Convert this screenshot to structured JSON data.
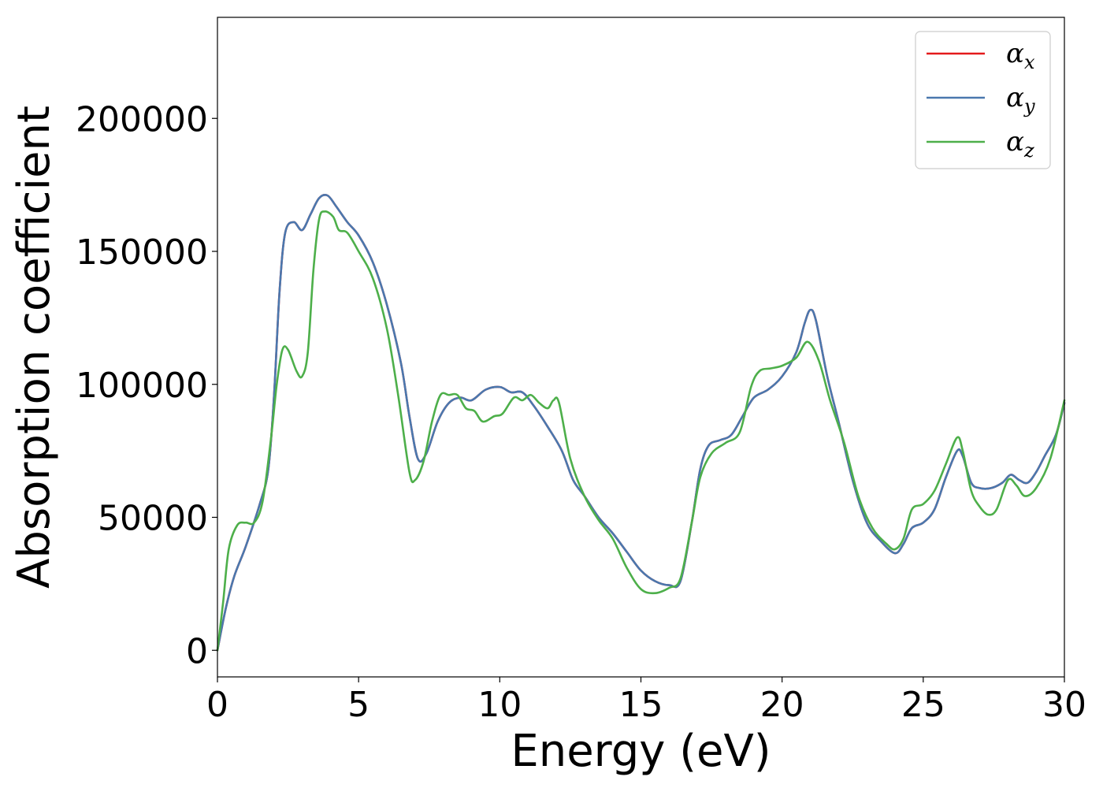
{
  "chart_data": {
    "type": "line",
    "title": "",
    "xlabel": "Energy (eV)",
    "ylabel": "Absorption coefficient",
    "xlim": [
      0,
      30
    ],
    "ylim": [
      -10000,
      238000
    ],
    "xticks": [
      0,
      5,
      10,
      15,
      20,
      25,
      30
    ],
    "yticks": [
      0,
      50000,
      100000,
      150000,
      200000
    ],
    "grid": false,
    "legend_position": "top-right",
    "series": [
      {
        "name": "αx",
        "symbol": "α",
        "subscript": "x",
        "color": "#e41a1c",
        "points": [
          [
            0,
            0
          ],
          [
            0.3,
            16000
          ],
          [
            0.6,
            28000
          ],
          [
            1.0,
            39000
          ],
          [
            1.5,
            55000
          ],
          [
            1.8,
            68000
          ],
          [
            2.0,
            95000
          ],
          [
            2.2,
            135000
          ],
          [
            2.4,
            157000
          ],
          [
            2.7,
            161000
          ],
          [
            3.0,
            158000
          ],
          [
            3.3,
            164000
          ],
          [
            3.6,
            170000
          ],
          [
            3.9,
            171000
          ],
          [
            4.2,
            167000
          ],
          [
            4.6,
            161000
          ],
          [
            5.0,
            156000
          ],
          [
            5.5,
            146000
          ],
          [
            6.0,
            130000
          ],
          [
            6.5,
            108000
          ],
          [
            6.8,
            88000
          ],
          [
            7.1,
            72000
          ],
          [
            7.4,
            74000
          ],
          [
            7.8,
            86000
          ],
          [
            8.2,
            93000
          ],
          [
            8.6,
            95000
          ],
          [
            9.0,
            94000
          ],
          [
            9.5,
            98000
          ],
          [
            10.0,
            99000
          ],
          [
            10.4,
            97000
          ],
          [
            10.8,
            97000
          ],
          [
            11.2,
            92000
          ],
          [
            11.7,
            84000
          ],
          [
            12.2,
            75000
          ],
          [
            12.6,
            64000
          ],
          [
            13.0,
            58000
          ],
          [
            13.5,
            50000
          ],
          [
            14.0,
            44000
          ],
          [
            14.5,
            37000
          ],
          [
            15.0,
            30000
          ],
          [
            15.5,
            26000
          ],
          [
            16.0,
            24500
          ],
          [
            16.4,
            26000
          ],
          [
            16.8,
            48000
          ],
          [
            17.1,
            68000
          ],
          [
            17.4,
            77000
          ],
          [
            17.8,
            79000
          ],
          [
            18.2,
            81000
          ],
          [
            18.6,
            88000
          ],
          [
            19.0,
            95000
          ],
          [
            19.5,
            98000
          ],
          [
            20.0,
            103000
          ],
          [
            20.5,
            112000
          ],
          [
            20.8,
            123000
          ],
          [
            21.0,
            128000
          ],
          [
            21.2,
            124000
          ],
          [
            21.6,
            103000
          ],
          [
            22.0,
            86000
          ],
          [
            22.5,
            64000
          ],
          [
            23.0,
            48000
          ],
          [
            23.5,
            41000
          ],
          [
            24.0,
            36500
          ],
          [
            24.3,
            40000
          ],
          [
            24.6,
            46000
          ],
          [
            25.0,
            48000
          ],
          [
            25.4,
            53000
          ],
          [
            25.8,
            65000
          ],
          [
            26.2,
            75000
          ],
          [
            26.4,
            73000
          ],
          [
            26.7,
            63000
          ],
          [
            27.0,
            61000
          ],
          [
            27.4,
            61000
          ],
          [
            27.8,
            63000
          ],
          [
            28.1,
            66000
          ],
          [
            28.4,
            64000
          ],
          [
            28.7,
            63000
          ],
          [
            29.0,
            67000
          ],
          [
            29.3,
            73000
          ],
          [
            29.7,
            81000
          ],
          [
            30.0,
            93000
          ]
        ]
      },
      {
        "name": "αy",
        "symbol": "α",
        "subscript": "y",
        "color": "#4a78ae",
        "points": [
          [
            0,
            0
          ],
          [
            0.3,
            16000
          ],
          [
            0.6,
            28000
          ],
          [
            1.0,
            39000
          ],
          [
            1.5,
            55000
          ],
          [
            1.8,
            68000
          ],
          [
            2.0,
            95000
          ],
          [
            2.2,
            135000
          ],
          [
            2.4,
            157000
          ],
          [
            2.7,
            161000
          ],
          [
            3.0,
            158000
          ],
          [
            3.3,
            164000
          ],
          [
            3.6,
            170000
          ],
          [
            3.9,
            171000
          ],
          [
            4.2,
            167000
          ],
          [
            4.6,
            161000
          ],
          [
            5.0,
            156000
          ],
          [
            5.5,
            146000
          ],
          [
            6.0,
            130000
          ],
          [
            6.5,
            108000
          ],
          [
            6.8,
            88000
          ],
          [
            7.1,
            72000
          ],
          [
            7.4,
            74000
          ],
          [
            7.8,
            86000
          ],
          [
            8.2,
            93000
          ],
          [
            8.6,
            95000
          ],
          [
            9.0,
            94000
          ],
          [
            9.5,
            98000
          ],
          [
            10.0,
            99000
          ],
          [
            10.4,
            97000
          ],
          [
            10.8,
            97000
          ],
          [
            11.2,
            92000
          ],
          [
            11.7,
            84000
          ],
          [
            12.2,
            75000
          ],
          [
            12.6,
            64000
          ],
          [
            13.0,
            58000
          ],
          [
            13.5,
            50000
          ],
          [
            14.0,
            44000
          ],
          [
            14.5,
            37000
          ],
          [
            15.0,
            30000
          ],
          [
            15.5,
            26000
          ],
          [
            16.0,
            24500
          ],
          [
            16.4,
            26000
          ],
          [
            16.8,
            48000
          ],
          [
            17.1,
            68000
          ],
          [
            17.4,
            77000
          ],
          [
            17.8,
            79000
          ],
          [
            18.2,
            81000
          ],
          [
            18.6,
            88000
          ],
          [
            19.0,
            95000
          ],
          [
            19.5,
            98000
          ],
          [
            20.0,
            103000
          ],
          [
            20.5,
            112000
          ],
          [
            20.8,
            123000
          ],
          [
            21.0,
            128000
          ],
          [
            21.2,
            124000
          ],
          [
            21.6,
            103000
          ],
          [
            22.0,
            86000
          ],
          [
            22.5,
            64000
          ],
          [
            23.0,
            48000
          ],
          [
            23.5,
            41000
          ],
          [
            24.0,
            36500
          ],
          [
            24.3,
            40000
          ],
          [
            24.6,
            46000
          ],
          [
            25.0,
            48000
          ],
          [
            25.4,
            53000
          ],
          [
            25.8,
            65000
          ],
          [
            26.2,
            75000
          ],
          [
            26.4,
            73000
          ],
          [
            26.7,
            63000
          ],
          [
            27.0,
            61000
          ],
          [
            27.4,
            61000
          ],
          [
            27.8,
            63000
          ],
          [
            28.1,
            66000
          ],
          [
            28.4,
            64000
          ],
          [
            28.7,
            63000
          ],
          [
            29.0,
            67000
          ],
          [
            29.3,
            73000
          ],
          [
            29.7,
            81000
          ],
          [
            30.0,
            93000
          ]
        ]
      },
      {
        "name": "αz",
        "symbol": "α",
        "subscript": "z",
        "color": "#4daf4a",
        "points": [
          [
            0,
            0
          ],
          [
            0.2,
            18000
          ],
          [
            0.4,
            38000
          ],
          [
            0.7,
            47000
          ],
          [
            1.0,
            48000
          ],
          [
            1.3,
            48000
          ],
          [
            1.6,
            56000
          ],
          [
            1.9,
            80000
          ],
          [
            2.1,
            100000
          ],
          [
            2.3,
            113000
          ],
          [
            2.5,
            113000
          ],
          [
            2.8,
            105000
          ],
          [
            3.0,
            103000
          ],
          [
            3.2,
            112000
          ],
          [
            3.4,
            143000
          ],
          [
            3.6,
            162000
          ],
          [
            3.8,
            165000
          ],
          [
            4.1,
            163000
          ],
          [
            4.3,
            158000
          ],
          [
            4.6,
            157000
          ],
          [
            5.0,
            150000
          ],
          [
            5.5,
            140000
          ],
          [
            6.0,
            121000
          ],
          [
            6.4,
            96000
          ],
          [
            6.8,
            67000
          ],
          [
            7.0,
            64000
          ],
          [
            7.3,
            71000
          ],
          [
            7.6,
            86000
          ],
          [
            7.9,
            96000
          ],
          [
            8.2,
            96000
          ],
          [
            8.5,
            96000
          ],
          [
            8.8,
            91000
          ],
          [
            9.1,
            90000
          ],
          [
            9.4,
            86000
          ],
          [
            9.8,
            88000
          ],
          [
            10.1,
            89000
          ],
          [
            10.5,
            95000
          ],
          [
            10.8,
            94000
          ],
          [
            11.1,
            96000
          ],
          [
            11.4,
            93000
          ],
          [
            11.7,
            91000
          ],
          [
            11.9,
            94000
          ],
          [
            12.1,
            93000
          ],
          [
            12.5,
            72000
          ],
          [
            13.0,
            58000
          ],
          [
            13.5,
            49000
          ],
          [
            14.0,
            42000
          ],
          [
            14.5,
            31000
          ],
          [
            15.0,
            23000
          ],
          [
            15.5,
            21500
          ],
          [
            16.0,
            23500
          ],
          [
            16.4,
            27000
          ],
          [
            16.8,
            48000
          ],
          [
            17.1,
            65000
          ],
          [
            17.5,
            74000
          ],
          [
            18.0,
            78000
          ],
          [
            18.5,
            82000
          ],
          [
            18.9,
            99000
          ],
          [
            19.2,
            105000
          ],
          [
            19.6,
            106000
          ],
          [
            20.0,
            107000
          ],
          [
            20.5,
            110000
          ],
          [
            20.9,
            116000
          ],
          [
            21.3,
            109000
          ],
          [
            21.7,
            94000
          ],
          [
            22.2,
            78000
          ],
          [
            22.7,
            58000
          ],
          [
            23.2,
            46000
          ],
          [
            23.7,
            40000
          ],
          [
            24.0,
            38000
          ],
          [
            24.3,
            42000
          ],
          [
            24.6,
            53000
          ],
          [
            25.0,
            55000
          ],
          [
            25.4,
            60000
          ],
          [
            25.8,
            70000
          ],
          [
            26.2,
            80000
          ],
          [
            26.4,
            75000
          ],
          [
            26.7,
            60000
          ],
          [
            27.0,
            54000
          ],
          [
            27.3,
            51000
          ],
          [
            27.6,
            53000
          ],
          [
            28.0,
            64000
          ],
          [
            28.3,
            62000
          ],
          [
            28.6,
            58000
          ],
          [
            29.0,
            61000
          ],
          [
            29.5,
            72000
          ],
          [
            30.0,
            94000
          ]
        ]
      }
    ]
  }
}
